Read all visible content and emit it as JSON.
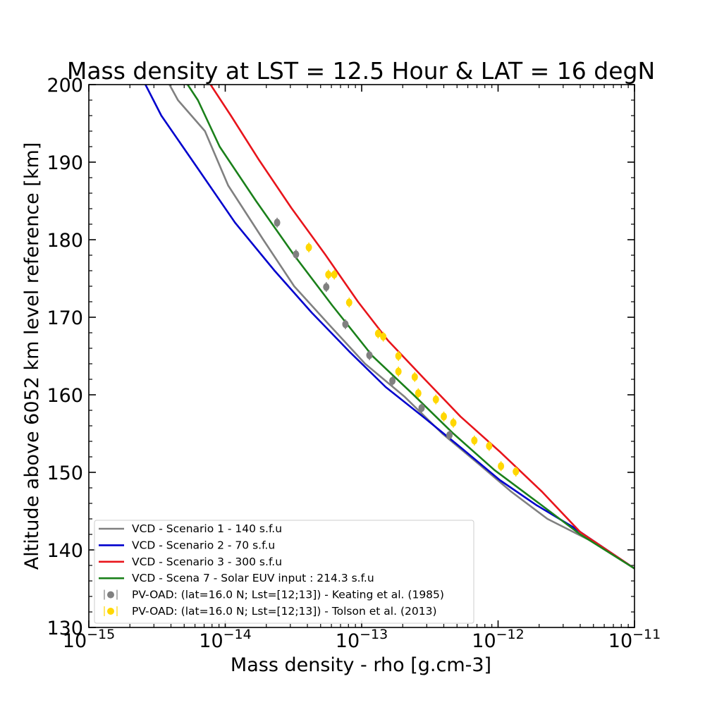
{
  "chart_data": {
    "type": "line",
    "title": "Mass density at  LST = 12.5 Hour & LAT = 16 degN",
    "xlabel": "Mass density - rho [g.cm-3]",
    "ylabel": "Altitude above 6052 km level reference [km]",
    "xscale": "log",
    "xlim": [
      1e-15,
      1e-11
    ],
    "ylim": [
      130,
      200
    ],
    "x_ticks": [
      {
        "base": "10",
        "exp": "−15"
      },
      {
        "base": "10",
        "exp": "−14"
      },
      {
        "base": "10",
        "exp": "−13"
      },
      {
        "base": "10",
        "exp": "−12"
      },
      {
        "base": "10",
        "exp": "−11"
      }
    ],
    "y_ticks": [
      "130",
      "140",
      "150",
      "160",
      "170",
      "180",
      "190",
      "200"
    ],
    "legend_position": "lower-left",
    "series": [
      {
        "name": "VCD - Scenario 1 - 140 s.f.u",
        "kind": "line",
        "color": "#808080",
        "points": [
          [
            3.9e-15,
            200
          ],
          [
            4.5e-15,
            198
          ],
          [
            7.1e-15,
            194
          ],
          [
            1.05e-14,
            187
          ],
          [
            1.9e-14,
            180
          ],
          [
            3.2e-14,
            174
          ],
          [
            5.8e-14,
            169
          ],
          [
            1.06e-13,
            164
          ],
          [
            2.05e-13,
            159.8
          ],
          [
            3.9e-13,
            155
          ],
          [
            7.3e-13,
            151
          ],
          [
            1.25e-12,
            147.5
          ],
          [
            2.3e-12,
            144
          ],
          [
            5e-12,
            141
          ],
          [
            1e-11,
            137.6
          ]
        ]
      },
      {
        "name": "VCD - Scenario 2 - 70 s.f.u",
        "kind": "line",
        "color": "#0000cd",
        "points": [
          [
            2.6e-15,
            200
          ],
          [
            3.4e-15,
            196
          ],
          [
            6.4e-15,
            189
          ],
          [
            1.18e-14,
            182.2
          ],
          [
            2.3e-14,
            176
          ],
          [
            4.3e-14,
            170.6
          ],
          [
            8.1e-14,
            165.6
          ],
          [
            1.5e-13,
            161
          ],
          [
            2.9e-13,
            157
          ],
          [
            5.5e-13,
            153
          ],
          [
            1.03e-12,
            149
          ],
          [
            1.9e-12,
            145.8
          ],
          [
            3.5e-12,
            143
          ],
          [
            1e-11,
            137.6
          ]
        ]
      },
      {
        "name": "VCD - Scenario 3 - 300 s.f.u",
        "kind": "line",
        "color": "#e8141b",
        "points": [
          [
            7.8e-15,
            200
          ],
          [
            1.1e-14,
            196
          ],
          [
            1.75e-14,
            190.4
          ],
          [
            3.05e-14,
            184.1
          ],
          [
            5.4e-14,
            178.1
          ],
          [
            9.4e-14,
            172
          ],
          [
            1.56e-13,
            167
          ],
          [
            2.9e-13,
            162
          ],
          [
            5.3e-13,
            157.2
          ],
          [
            1.04e-12,
            152.6
          ],
          [
            2.1e-12,
            147.5
          ],
          [
            4e-12,
            142.3
          ],
          [
            1e-11,
            137.6
          ]
        ]
      },
      {
        "name": "VCD - Scena 7 - Solar EUV input : 214.3 s.f.u",
        "kind": "line",
        "color": "#1a801a",
        "points": [
          [
            5.3e-15,
            200
          ],
          [
            6.3e-15,
            198
          ],
          [
            9.1e-15,
            192
          ],
          [
            1.68e-14,
            185
          ],
          [
            3.2e-14,
            178
          ],
          [
            6.1e-14,
            171.5
          ],
          [
            1.2e-13,
            165
          ],
          [
            2.4e-13,
            160
          ],
          [
            4.7e-13,
            155
          ],
          [
            9.4e-13,
            150.3
          ],
          [
            2e-12,
            146
          ],
          [
            4e-12,
            142
          ],
          [
            1e-11,
            137.6
          ]
        ]
      },
      {
        "name": "PV-OAD: (lat=16.0 N; Lst=[12;13]) - Keating et al. (1985)",
        "kind": "scatter",
        "color": "#808080",
        "points": [
          [
            2.4e-14,
            182.2
          ],
          [
            3.3e-14,
            178.1
          ],
          [
            5.5e-14,
            173.9
          ],
          [
            7.6e-14,
            169.1
          ],
          [
            1.14e-13,
            165.1
          ],
          [
            1.68e-13,
            161.8
          ],
          [
            2.75e-13,
            158.3
          ],
          [
            4.4e-13,
            154.8
          ]
        ]
      },
      {
        "name": "PV-OAD: (lat=16.0 N; Lst=[12;13]) - Tolson et al. (2013)",
        "kind": "scatter",
        "color": "#ffd700",
        "points": [
          [
            4.1e-14,
            179
          ],
          [
            5.7e-14,
            175.5
          ],
          [
            6.3e-14,
            175.5
          ],
          [
            8.1e-14,
            171.9
          ],
          [
            1.32e-13,
            167.9
          ],
          [
            1.44e-13,
            167.5
          ],
          [
            1.86e-13,
            165
          ],
          [
            1.86e-13,
            163
          ],
          [
            2.45e-13,
            162.3
          ],
          [
            2.6e-13,
            160.2
          ],
          [
            3.5e-13,
            159.4
          ],
          [
            4e-13,
            157.2
          ],
          [
            4.7e-13,
            156.4
          ],
          [
            6.7e-13,
            154.1
          ],
          [
            8.6e-13,
            153.4
          ],
          [
            1.05e-12,
            150.8
          ],
          [
            1.35e-12,
            150.1
          ]
        ]
      }
    ]
  }
}
